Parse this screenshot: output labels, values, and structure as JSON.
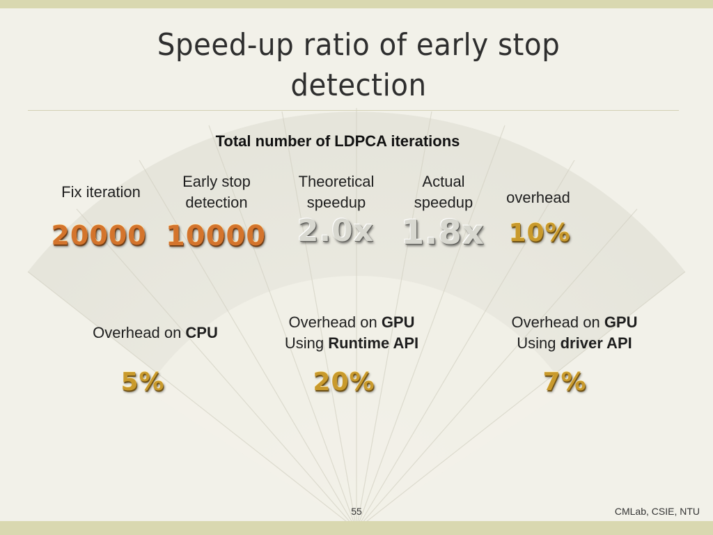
{
  "slide": {
    "title_line1": "Speed-up ratio of early stop",
    "title_line2": "detection",
    "subtitle": "Total number of LDPCA iterations"
  },
  "metrics_row1": [
    {
      "label_line1": "Fix iteration",
      "label_line2": "",
      "value": "20000"
    },
    {
      "label_line1": "Early stop",
      "label_line2": "detection",
      "value": "10000"
    },
    {
      "label_line1": "Theoretical",
      "label_line2": "speedup",
      "value": "2.0x"
    },
    {
      "label_line1": "Actual",
      "label_line2": "speedup",
      "value": "1.8x"
    },
    {
      "label_line1": "overhead",
      "label_line2": "",
      "value": "10%"
    }
  ],
  "metrics_row2": [
    {
      "line1_plain": "Overhead on ",
      "line1_bold": "CPU",
      "line2_plain": "",
      "line2_bold": "",
      "value": "5%"
    },
    {
      "line1_plain": "Overhead on ",
      "line1_bold": "GPU",
      "line2_plain": "Using ",
      "line2_bold": "Runtime API",
      "value": "20%"
    },
    {
      "line1_plain": "Overhead on ",
      "line1_bold": "GPU",
      "line2_plain": "Using ",
      "line2_bold": "driver API",
      "value": "7%"
    }
  ],
  "footer": {
    "page_number": "55",
    "affiliation": "CMLab, CSIE, NTU"
  },
  "colors": {
    "background": "#f2f1e9",
    "band": "#d9d8b0",
    "orange_value": "#d4742c",
    "gold_value": "#c99a2c",
    "grey_value": "#d8d8d0"
  }
}
